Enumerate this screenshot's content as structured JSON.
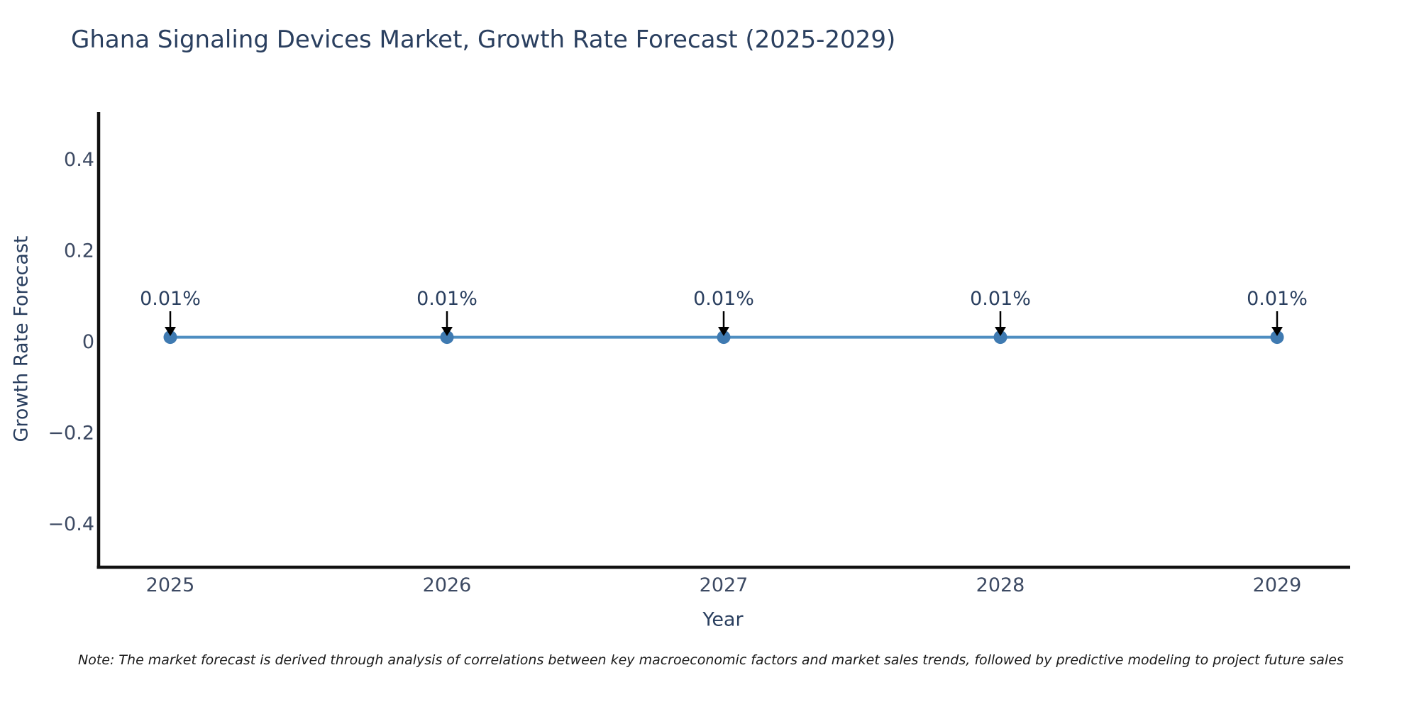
{
  "figure": {
    "title": "Ghana Signaling Devices Market, Growth Rate Forecast (2025-2029)",
    "note": "Note: The market forecast is derived through analysis of correlations between key macroeconomic factors and market sales trends, followed by predictive modeling to project future sales"
  },
  "chart_data": {
    "type": "line",
    "title": "Ghana Signaling Devices Market, Growth Rate Forecast (2025-2029)",
    "xlabel": "Year",
    "ylabel": "Growth Rate Forecast",
    "x": [
      2025,
      2026,
      2027,
      2028,
      2029
    ],
    "series": [
      {
        "name": "Growth Rate Forecast",
        "unit": "%",
        "values": [
          0.01,
          0.01,
          0.01,
          0.01,
          0.01
        ]
      }
    ],
    "point_labels": [
      "0.01%",
      "0.01%",
      "0.01%",
      "0.01%",
      "0.01%"
    ],
    "ylim": [
      -0.5,
      0.5
    ],
    "yticks": [
      0.4,
      0.2,
      0,
      -0.2,
      -0.4
    ],
    "ytick_labels": [
      "0.4",
      "0.2",
      "0",
      "−0.2",
      "−0.4"
    ],
    "grid": false,
    "legend": "none",
    "marker": "circle",
    "annotation_arrows": true,
    "colors": {
      "line": "#4e8ec1",
      "marker": "#3f7ab1",
      "axis_line": "#111111",
      "title_text": "#2a3f5f",
      "tick_text": "#3d4a63",
      "annotation_text": "#2a3f5f",
      "arrow": "#000000",
      "note_text": "#1a1a1a",
      "background": "#ffffff"
    }
  }
}
